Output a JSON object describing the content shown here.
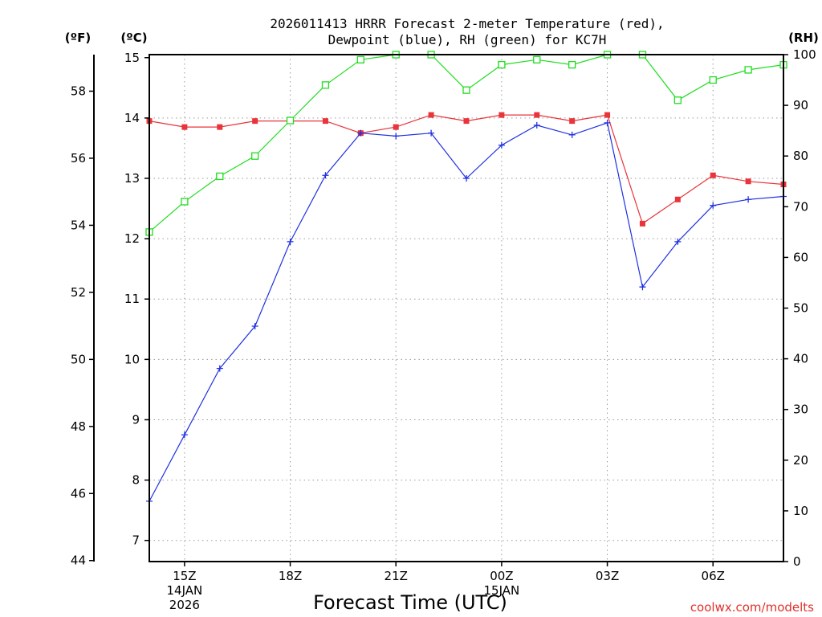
{
  "chart_data": {
    "type": "line",
    "title_line1": "2026011413 HRRR Forecast 2-meter Temperature (red),",
    "title_line2": "Dewpoint (blue), RH (green) for KC7H",
    "xlabel": "Forecast Time (UTC)",
    "credit": "coolwx.com/modelts",
    "units": {
      "fahrenheit": "(ºF)",
      "celsius": "(ºC)",
      "rh": "(RH)"
    },
    "x_hours": [
      0,
      1,
      2,
      3,
      4,
      5,
      6,
      7,
      8,
      9,
      10,
      11,
      12,
      13,
      14,
      15,
      16,
      17,
      18
    ],
    "x_ticks": [
      {
        "hour": 1,
        "label": "15Z"
      },
      {
        "hour": 4,
        "label": "18Z"
      },
      {
        "hour": 7,
        "label": "21Z"
      },
      {
        "hour": 10,
        "label": "00Z"
      },
      {
        "hour": 13,
        "label": "03Z"
      },
      {
        "hour": 16,
        "label": "06Z"
      }
    ],
    "date_labels": [
      {
        "hour": 1,
        "line1": "14JAN",
        "line2": "2026"
      },
      {
        "hour": 10,
        "line1": "15JAN"
      }
    ],
    "celsius_axis": {
      "min": 6.65,
      "max": 15.05,
      "ticks": [
        7,
        8,
        9,
        10,
        11,
        12,
        13,
        14,
        15
      ]
    },
    "fahrenheit_axis": {
      "min": 43.97,
      "max": 59.09,
      "ticks": [
        44,
        46,
        48,
        50,
        52,
        54,
        56,
        58
      ]
    },
    "rh_axis": {
      "min": 0,
      "max": 100,
      "ticks": [
        0,
        10,
        20,
        30,
        40,
        50,
        60,
        70,
        80,
        90,
        100
      ]
    },
    "series": [
      {
        "name": "2-meter Temperature",
        "axis": "celsius",
        "color": "#e8343a",
        "marker": "filled-square",
        "values": [
          13.95,
          13.85,
          13.85,
          13.95,
          13.95,
          13.95,
          13.75,
          13.85,
          14.05,
          13.95,
          14.05,
          14.05,
          13.95,
          14.05,
          12.25,
          12.65,
          13.05,
          12.95,
          12.9
        ]
      },
      {
        "name": "Dewpoint",
        "axis": "celsius",
        "color": "#2030e0",
        "marker": "plus",
        "values": [
          7.65,
          8.75,
          9.85,
          10.55,
          11.95,
          13.05,
          13.75,
          13.7,
          13.75,
          13.0,
          13.55,
          13.88,
          13.72,
          13.92,
          11.2,
          11.95,
          12.55,
          12.65,
          12.7
        ]
      },
      {
        "name": "Relative Humidity",
        "axis": "rh",
        "color": "#20dd20",
        "marker": "open-square",
        "values": [
          65,
          71,
          76,
          80,
          87,
          94,
          99,
          100,
          100,
          93,
          98,
          99,
          98,
          100,
          100,
          91,
          95,
          97,
          98
        ]
      }
    ]
  }
}
